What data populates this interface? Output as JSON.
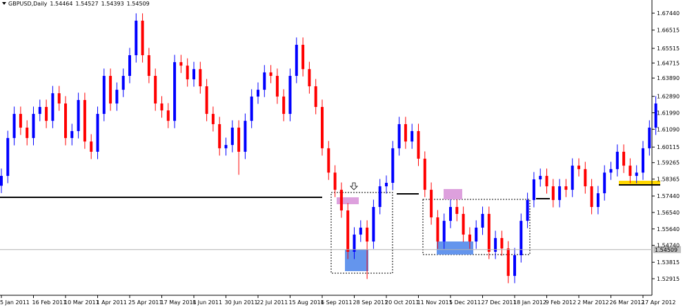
{
  "chart_data": {
    "type": "candlestick",
    "symbol": "GBPUSD,Daily",
    "quote": [
      1.54464,
      1.54527,
      1.54393,
      1.54509
    ],
    "up_color": "#0000ff",
    "down_color": "#ff0000",
    "ylim": [
      1.5201,
      1.6816
    ],
    "yticks": [
      {
        "value": 1.6744,
        "label": "1.67440"
      },
      1.66515,
      1.65515,
      1.64715,
      {
        "value": 1.6389,
        "label": "1.63890"
      },
      {
        "value": 1.6289,
        "label": "1.62890"
      },
      {
        "value": 1.6199,
        "label": "1.61990"
      },
      {
        "value": 1.6109,
        "label": "1.61090"
      },
      1.60115,
      1.59265,
      1.58365,
      {
        "value": 1.5744,
        "label": "1.57440"
      },
      {
        "value": 1.5654,
        "label": "1.56540"
      },
      {
        "value": 1.5564,
        "label": "1.55640"
      },
      {
        "value": 1.5474,
        "label": "1.54740"
      },
      1.53815,
      1.52915
    ],
    "categories": [
      "5 Jan 2011",
      null,
      null,
      null,
      null,
      "16 Feb 2011",
      null,
      null,
      null,
      null,
      "10 Mar 2011",
      null,
      null,
      null,
      null,
      "1 Apr 2011",
      null,
      null,
      null,
      null,
      "25 Apr 2011",
      null,
      null,
      null,
      null,
      "17 May 2011",
      null,
      null,
      null,
      null,
      "8 Jun 2011",
      null,
      null,
      null,
      null,
      "30 Jun 2011",
      null,
      null,
      null,
      null,
      "22 Jul 2011",
      null,
      null,
      null,
      null,
      "15 Aug 2011",
      null,
      null,
      null,
      null,
      "6 Sep 2011",
      null,
      null,
      null,
      null,
      "28 Sep 2011",
      null,
      null,
      null,
      null,
      "20 Oct 2011",
      null,
      null,
      null,
      null,
      "11 Nov 2011",
      null,
      null,
      null,
      null,
      "5 Dec 2011",
      null,
      null,
      null,
      null,
      "27 Dec 2011",
      null,
      null,
      null,
      null,
      "18 Jan 2012",
      null,
      null,
      null,
      null,
      "9 Feb 2012",
      null,
      null,
      null,
      null,
      "2 Mar 2012",
      null,
      null,
      null,
      null,
      "26 Mar 2012",
      null,
      null,
      null,
      null,
      "17 Apr 2012",
      null,
      null
    ],
    "candles": [
      [
        1.58,
        1.5894,
        1.576,
        1.5854
      ],
      [
        1.5854,
        1.6101,
        1.5814,
        1.6061
      ],
      [
        1.6061,
        1.6233,
        1.6021,
        1.6193
      ],
      [
        1.6193,
        1.6233,
        1.6078,
        1.6118
      ],
      [
        1.6118,
        1.6158,
        1.6021,
        1.6061
      ],
      [
        1.6061,
        1.6233,
        1.6021,
        1.6193
      ],
      [
        1.6193,
        1.6271,
        1.6153,
        1.6231
      ],
      [
        1.6231,
        1.6271,
        1.6115,
        1.6155
      ],
      [
        1.6155,
        1.6346,
        1.6115,
        1.6306
      ],
      [
        1.6306,
        1.6346,
        1.621,
        1.625
      ],
      [
        1.625,
        1.629,
        1.6021,
        1.6061
      ],
      [
        1.6061,
        1.6139,
        1.6021,
        1.6099
      ],
      [
        1.6099,
        1.6309,
        1.6059,
        1.6269
      ],
      [
        1.6269,
        1.6309,
        1.6002,
        1.6042
      ],
      [
        1.6042,
        1.6082,
        1.5946,
        1.5986
      ],
      [
        1.5986,
        1.6233,
        1.5946,
        1.6193
      ],
      [
        1.6193,
        1.6441,
        1.6153,
        1.6401
      ],
      [
        1.6401,
        1.6441,
        1.621,
        1.625
      ],
      [
        1.625,
        1.6365,
        1.621,
        1.6325
      ],
      [
        1.6325,
        1.6441,
        1.6285,
        1.6401
      ],
      [
        1.6401,
        1.6554,
        1.6361,
        1.6514
      ],
      [
        1.6514,
        1.6743,
        1.6474,
        1.6703
      ],
      [
        1.6703,
        1.6743,
        1.6474,
        1.6514
      ],
      [
        1.6514,
        1.6554,
        1.6361,
        1.6401
      ],
      [
        1.6401,
        1.6441,
        1.621,
        1.625
      ],
      [
        1.625,
        1.629,
        1.6172,
        1.6212
      ],
      [
        1.6212,
        1.6252,
        1.6115,
        1.6155
      ],
      [
        1.6155,
        1.6516,
        1.6115,
        1.6476
      ],
      [
        1.6476,
        1.6516,
        1.6417,
        1.6457
      ],
      [
        1.6457,
        1.6497,
        1.6342,
        1.6382
      ],
      [
        1.6382,
        1.6478,
        1.6342,
        1.6438
      ],
      [
        1.6438,
        1.6478,
        1.6304,
        1.6344
      ],
      [
        1.6344,
        1.6384,
        1.6153,
        1.6193
      ],
      [
        1.6193,
        1.6233,
        1.6097,
        1.6137
      ],
      [
        1.6137,
        1.6177,
        1.5965,
        1.6005
      ],
      [
        1.6005,
        1.6063,
        1.5965,
        1.6023
      ],
      [
        1.6023,
        1.6158,
        1.5983,
        1.6118
      ],
      [
        1.6118,
        1.6158,
        1.586,
        1.5986
      ],
      [
        1.5986,
        1.6195,
        1.5946,
        1.6155
      ],
      [
        1.6155,
        1.6328,
        1.6115,
        1.6288
      ],
      [
        1.6288,
        1.6365,
        1.6248,
        1.6325
      ],
      [
        1.6325,
        1.646,
        1.6285,
        1.642
      ],
      [
        1.642,
        1.646,
        1.6361,
        1.6401
      ],
      [
        1.6401,
        1.6441,
        1.6248,
        1.6288
      ],
      [
        1.6288,
        1.6328,
        1.6153,
        1.6193
      ],
      [
        1.6193,
        1.6441,
        1.6153,
        1.6401
      ],
      [
        1.6401,
        1.6611,
        1.6361,
        1.6571
      ],
      [
        1.6571,
        1.6611,
        1.6398,
        1.6438
      ],
      [
        1.6438,
        1.6478,
        1.6304,
        1.6344
      ],
      [
        1.6344,
        1.6384,
        1.6191,
        1.6231
      ],
      [
        1.6231,
        1.6271,
        1.5965,
        1.6005
      ],
      [
        1.6005,
        1.6045,
        1.5832,
        1.5872
      ],
      [
        1.5872,
        1.5912,
        1.5738,
        1.5778
      ],
      [
        1.5778,
        1.5818,
        1.5625,
        1.5665
      ],
      [
        1.5665,
        1.5705,
        1.5399,
        1.5439
      ],
      [
        1.5439,
        1.5573,
        1.5399,
        1.5533
      ],
      [
        1.5533,
        1.5611,
        1.5493,
        1.5571
      ],
      [
        1.5571,
        1.5611,
        1.529,
        1.5495
      ],
      [
        1.5495,
        1.5724,
        1.5455,
        1.5684
      ],
      [
        1.5684,
        1.5837,
        1.5644,
        1.5797
      ],
      [
        1.5797,
        1.5856,
        1.5757,
        1.5816
      ],
      [
        1.5816,
        1.6045,
        1.5776,
        1.6005
      ],
      [
        1.6005,
        1.6177,
        1.5965,
        1.6137
      ],
      [
        1.6137,
        1.6177,
        1.6002,
        1.6042
      ],
      [
        1.6042,
        1.6139,
        1.6002,
        1.6099
      ],
      [
        1.6099,
        1.6139,
        1.5908,
        1.5948
      ],
      [
        1.5948,
        1.5988,
        1.5738,
        1.5778
      ],
      [
        1.5778,
        1.5818,
        1.5587,
        1.5627
      ],
      [
        1.5627,
        1.5667,
        1.5455,
        1.5495
      ],
      [
        1.5495,
        1.5648,
        1.5455,
        1.5608
      ],
      [
        1.5608,
        1.5724,
        1.5568,
        1.5684
      ],
      [
        1.5684,
        1.5724,
        1.5606,
        1.5646
      ],
      [
        1.5646,
        1.5686,
        1.5493,
        1.5533
      ],
      [
        1.5533,
        1.5573,
        1.5455,
        1.5495
      ],
      [
        1.5495,
        1.5611,
        1.5455,
        1.5571
      ],
      [
        1.5571,
        1.5686,
        1.5531,
        1.5646
      ],
      [
        1.5646,
        1.5686,
        1.5399,
        1.5439
      ],
      [
        1.5439,
        1.5554,
        1.5399,
        1.5514
      ],
      [
        1.5514,
        1.5554,
        1.5417,
        1.5457
      ],
      [
        1.5457,
        1.5497,
        1.5267,
        1.5307
      ],
      [
        1.5307,
        1.546,
        1.5267,
        1.542
      ],
      [
        1.542,
        1.5648,
        1.538,
        1.5608
      ],
      [
        1.5608,
        1.5762,
        1.5568,
        1.5722
      ],
      [
        1.5722,
        1.5875,
        1.5682,
        1.5835
      ],
      [
        1.5835,
        1.5894,
        1.5795,
        1.5854
      ],
      [
        1.5854,
        1.5894,
        1.5757,
        1.5797
      ],
      [
        1.5797,
        1.5837,
        1.5682,
        1.5722
      ],
      [
        1.5722,
        1.5837,
        1.5682,
        1.5797
      ],
      [
        1.5797,
        1.5837,
        1.5738,
        1.5778
      ],
      [
        1.5778,
        1.595,
        1.5738,
        1.591
      ],
      [
        1.591,
        1.595,
        1.5851,
        1.5891
      ],
      [
        1.5891,
        1.5931,
        1.5757,
        1.5797
      ],
      [
        1.5797,
        1.5837,
        1.5644,
        1.5684
      ],
      [
        1.5684,
        1.5799,
        1.5644,
        1.5759
      ],
      [
        1.5759,
        1.5912,
        1.5719,
        1.5872
      ],
      [
        1.5872,
        1.5931,
        1.5832,
        1.5891
      ],
      [
        1.5891,
        1.6026,
        1.5851,
        1.5986
      ],
      [
        1.5986,
        1.6026,
        1.587,
        1.591
      ],
      [
        1.591,
        1.595,
        1.5814,
        1.5854
      ],
      [
        1.5854,
        1.5912,
        1.5814,
        1.5872
      ],
      [
        1.5872,
        1.6045,
        1.5832,
        1.6005
      ],
      [
        1.6005,
        1.6158,
        1.5965,
        1.6118
      ],
      [
        1.6118,
        1.629,
        1.6078,
        1.625
      ]
    ]
  }
}
